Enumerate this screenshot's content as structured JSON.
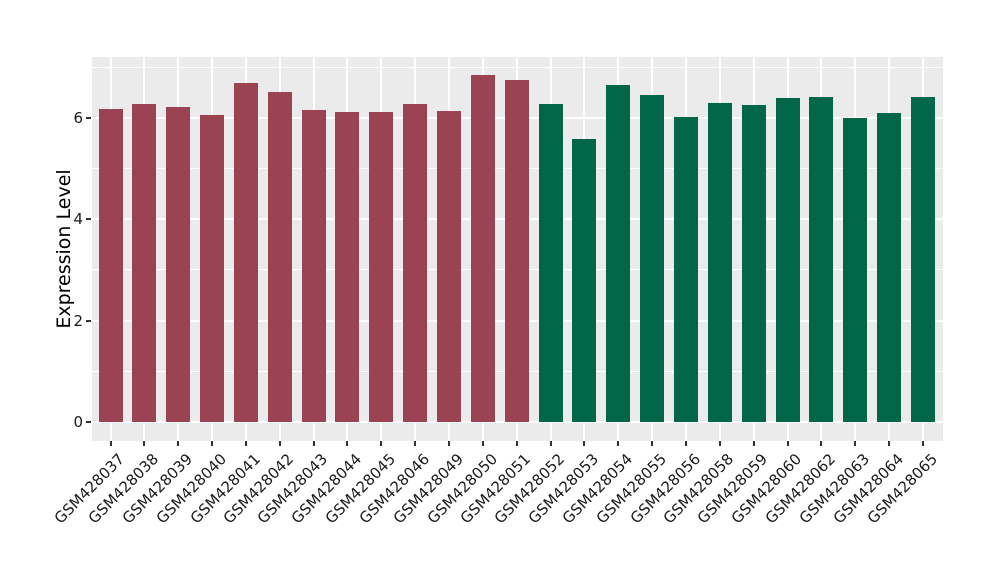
{
  "chart_data": {
    "type": "bar",
    "title": "",
    "xlabel": "",
    "ylabel": "Expression Level",
    "ylim": [
      0,
      7.2
    ],
    "yticks": [
      0,
      2,
      4,
      6
    ],
    "minor_gridlines": [
      1,
      3,
      5,
      7
    ],
    "grid": "on",
    "legend": "none",
    "panel_background": "#EBEBEB",
    "gridline_color": "#FFFFFF",
    "tick_label_color": "#1a1a1a",
    "group_colors": {
      "group1": "#9B4352",
      "group2": "#026648"
    },
    "categories": [
      "GSM428037",
      "GSM428038",
      "GSM428039",
      "GSM428040",
      "GSM428041",
      "GSM428042",
      "GSM428043",
      "GSM428044",
      "GSM428045",
      "GSM428046",
      "GSM428049",
      "GSM428050",
      "GSM428051",
      "GSM428052",
      "GSM428053",
      "GSM428054",
      "GSM428055",
      "GSM428056",
      "GSM428058",
      "GSM428059",
      "GSM428060",
      "GSM428062",
      "GSM428063",
      "GSM428064",
      "GSM428065"
    ],
    "values": [
      6.18,
      6.27,
      6.22,
      6.06,
      6.69,
      6.52,
      6.16,
      6.12,
      6.12,
      6.28,
      6.14,
      6.85,
      6.75,
      6.28,
      5.58,
      6.66,
      6.46,
      6.02,
      6.29,
      6.25,
      6.4,
      6.42,
      5.99,
      6.1,
      6.42
    ],
    "groups": [
      "group1",
      "group1",
      "group1",
      "group1",
      "group1",
      "group1",
      "group1",
      "group1",
      "group1",
      "group1",
      "group1",
      "group1",
      "group1",
      "group2",
      "group2",
      "group2",
      "group2",
      "group2",
      "group2",
      "group2",
      "group2",
      "group2",
      "group2",
      "group2",
      "group2"
    ]
  }
}
